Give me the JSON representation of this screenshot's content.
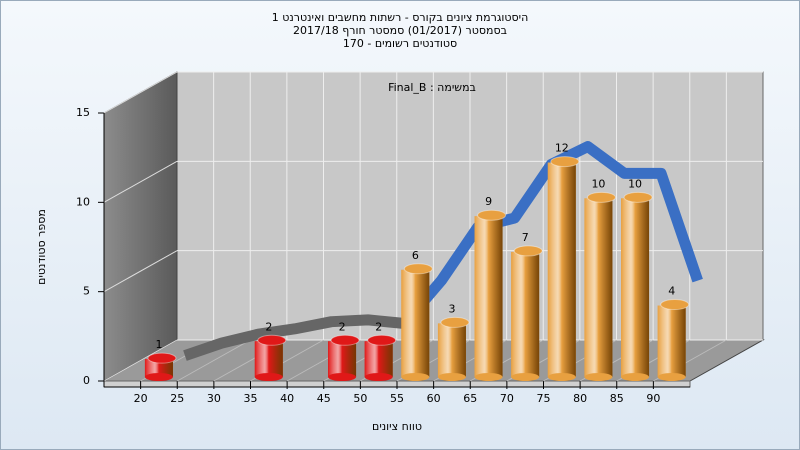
{
  "chart_data": {
    "type": "histogram",
    "title": [
      "היסטוגרמת ציונים בקורס - רשתות מחשבים ואינטרנט 1",
      "בסמסטר  (01/2017)  סמסטר חורף 2017/18",
      "סטודנטים רשומים - 170"
    ],
    "annotation": "במשימה : Final_B",
    "xlabel": "טווח ציונים",
    "ylabel": "מספר סטודנטים",
    "bins": [
      20,
      25,
      30,
      35,
      40,
      45,
      50,
      55,
      60,
      65,
      70,
      75,
      80,
      85,
      90,
      95
    ],
    "values": [
      1,
      0,
      0,
      2,
      0,
      2,
      2,
      6,
      3,
      9,
      7,
      12,
      10,
      10,
      4
    ],
    "colors": [
      "#e01818",
      "#e01818",
      "#e01818",
      "#e01818",
      "#e01818",
      "#e01818",
      "#e01818",
      "#e8a040",
      "#e8a040",
      "#e8a040",
      "#e8a040",
      "#e8a040",
      "#e8a040",
      "#e8a040",
      "#e8a040"
    ],
    "curve": {
      "x": [
        22.5,
        27.5,
        32.5,
        37.5,
        42.5,
        47.5,
        52.5,
        57.5,
        62.5,
        67.5,
        72.5,
        77.5,
        82.5,
        87.5,
        92.5
      ],
      "values": [
        0.3,
        1,
        1.5,
        1.8,
        2.2,
        2.3,
        2.1,
        4.5,
        7.5,
        8,
        11,
        12,
        10.5,
        10.5,
        4.5
      ],
      "color": "#3a6fc4"
    },
    "xlim": [
      15,
      95
    ],
    "xticks": [
      20,
      25,
      30,
      35,
      40,
      45,
      50,
      55,
      60,
      65,
      70,
      75,
      80,
      85,
      90
    ],
    "ylim": [
      0,
      15
    ],
    "yticks": [
      0,
      5,
      10,
      15
    ],
    "grid": true
  }
}
